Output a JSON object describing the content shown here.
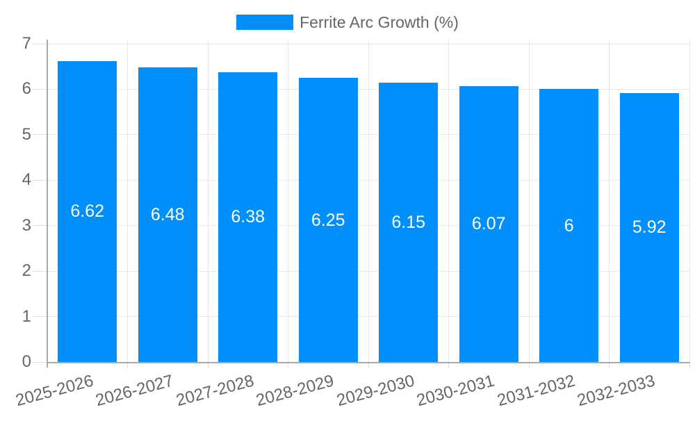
{
  "chart_data": {
    "type": "bar",
    "title": "",
    "legend": "Ferrite Arc Growth (%)",
    "legend_position": "top",
    "categories": [
      "2025-2026",
      "2026-2027",
      "2027-2028",
      "2028-2029",
      "2029-2030",
      "2030-2031",
      "2031-2032",
      "2032-2033"
    ],
    "values": [
      6.62,
      6.48,
      6.38,
      6.25,
      6.15,
      6.07,
      6,
      5.92
    ],
    "value_labels": [
      "6.62",
      "6.48",
      "6.38",
      "6.25",
      "6.15",
      "6.07",
      "6",
      "5.92"
    ],
    "xlabel": "",
    "ylabel": "",
    "ylim": [
      0,
      7
    ],
    "yticks": [
      0,
      1,
      2,
      3,
      4,
      5,
      6,
      7
    ],
    "grid": true,
    "colors": {
      "bar": "#008FFB",
      "data_label": "#ffffff",
      "axis_label": "#666666",
      "legend_text": "#666666",
      "gridline": "#e7e7e7",
      "axis_line": "#a8a8a8"
    }
  }
}
